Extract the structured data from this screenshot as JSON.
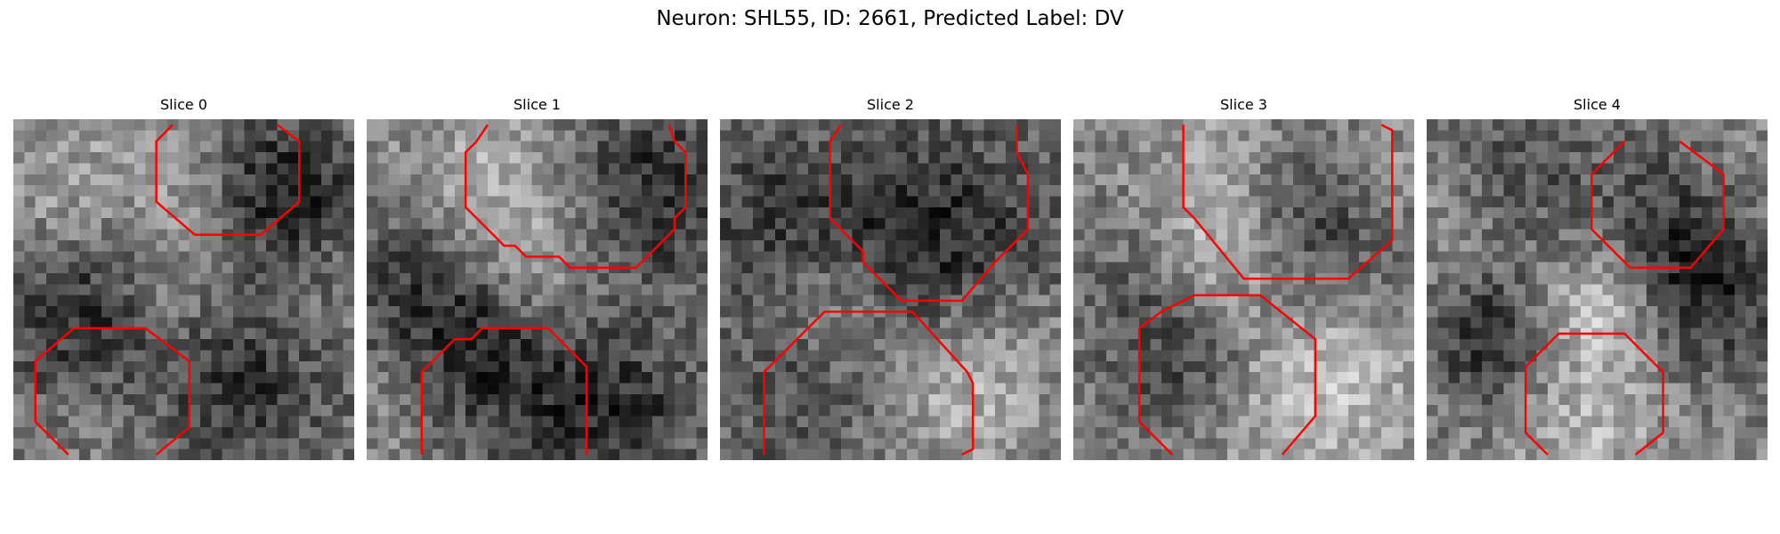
{
  "figure": {
    "title": "Neuron: SHL55, ID: 2661, Predicted Label: DV",
    "overlay_color": "#ff0000"
  },
  "panels": [
    {
      "title": "Slice 0"
    },
    {
      "title": "Slice 1"
    },
    {
      "title": "Slice 2"
    },
    {
      "title": "Slice 3"
    },
    {
      "title": "Slice 4"
    }
  ]
}
